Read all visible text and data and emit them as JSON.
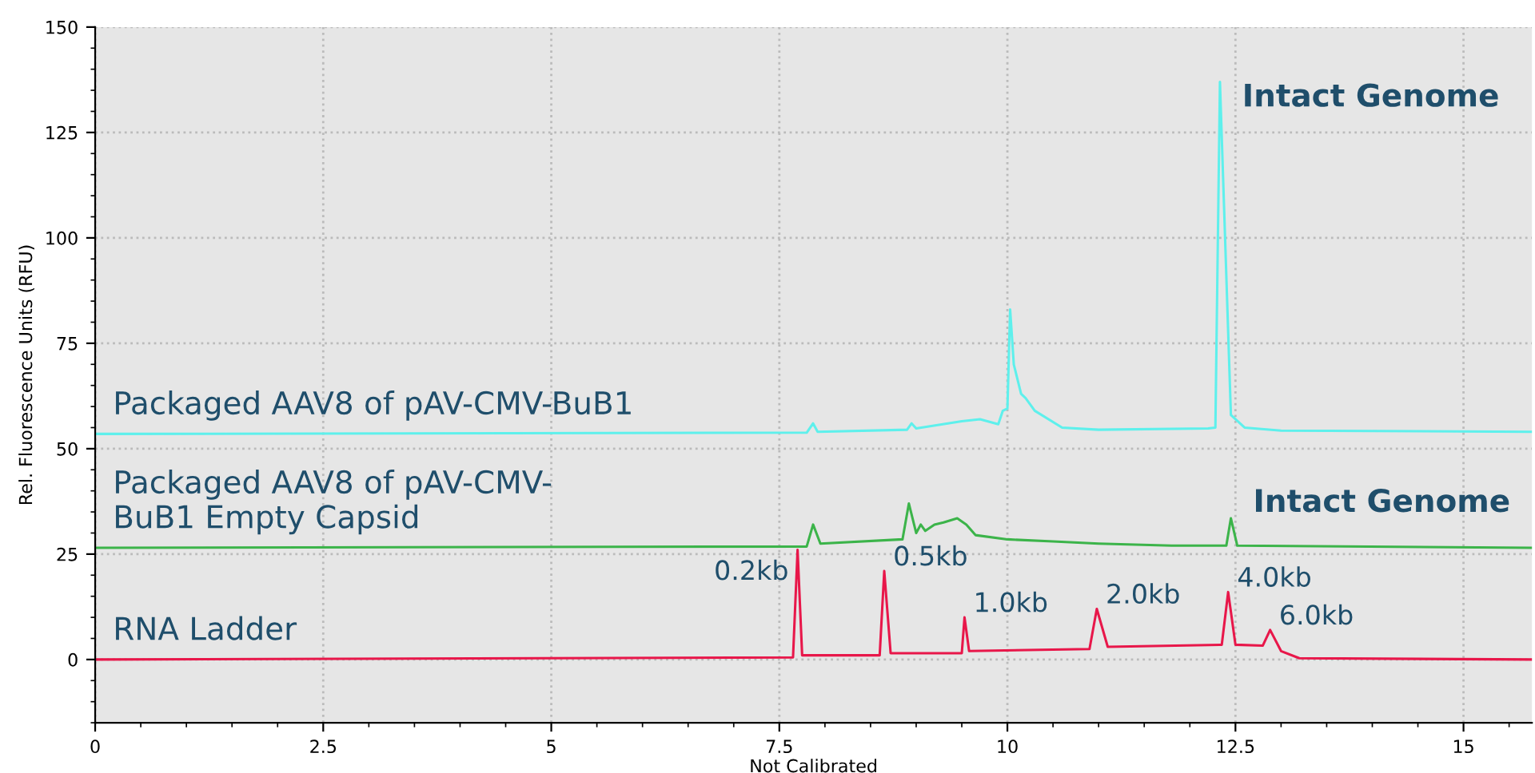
{
  "chart_data": {
    "type": "line",
    "xlabel": "Not Calibrated",
    "ylabel": "Rel. Fluorescence Units (RFU)",
    "xlim": [
      0,
      15.75
    ],
    "ylim": [
      -15,
      150
    ],
    "xticks": [
      0,
      2.5,
      5,
      7.5,
      10,
      12.5,
      15
    ],
    "yticks": [
      0,
      25,
      50,
      75,
      100,
      125,
      150
    ],
    "grid": true,
    "legend": false,
    "marker": "none",
    "line_style": "solid",
    "series": [
      {
        "name": "Packaged AAV8 of pAV-CMV-BuB1",
        "color": "#5ef0ec",
        "x": [
          0,
          7.8,
          7.87,
          7.92,
          8.9,
          8.95,
          9.0,
          9.5,
          9.7,
          9.9,
          9.95,
          10.0,
          10.03,
          10.07,
          10.15,
          10.2,
          10.3,
          10.6,
          11.0,
          12.2,
          12.28,
          12.33,
          12.45,
          12.6,
          13.0,
          15.75
        ],
        "values": [
          53.5,
          53.8,
          56,
          54,
          54.5,
          56,
          54.8,
          56.5,
          57,
          55.8,
          59,
          59.5,
          83,
          70,
          63,
          62,
          59,
          55,
          54.5,
          54.8,
          55,
          137,
          58,
          55,
          54.3,
          54
        ]
      },
      {
        "name": "Packaged AAV8 of pAV-CMV-\nBuB1 Empty Capsid",
        "color": "#3cb44a",
        "x": [
          0,
          7.8,
          7.87,
          7.95,
          8.85,
          8.92,
          9.0,
          9.05,
          9.1,
          9.2,
          9.3,
          9.45,
          9.55,
          9.65,
          10.0,
          10.5,
          11.0,
          11.8,
          12.4,
          12.45,
          12.52,
          15.75
        ],
        "values": [
          26.5,
          26.8,
          32,
          27.5,
          28.5,
          37,
          30,
          32,
          30.5,
          32,
          32.5,
          33.5,
          32,
          29.5,
          28.5,
          28,
          27.5,
          27,
          27,
          33.5,
          27,
          26.5
        ]
      },
      {
        "name": "RNA Ladder",
        "color": "#e8174a",
        "x": [
          0,
          7.65,
          7.7,
          7.75,
          8.6,
          8.65,
          8.72,
          9.5,
          9.53,
          9.58,
          10.9,
          10.98,
          11.1,
          12.35,
          12.42,
          12.5,
          12.8,
          12.88,
          13.0,
          13.2,
          15.75
        ],
        "values": [
          0,
          0.5,
          26,
          1,
          1,
          21,
          1.5,
          1.5,
          10,
          2,
          2.5,
          12,
          3,
          3.5,
          16,
          3.5,
          3.3,
          7,
          2,
          0.3,
          0
        ]
      }
    ],
    "annotations": [
      {
        "text": "Intact Genome",
        "x": 12.33,
        "y": 137
      },
      {
        "text": "Intact Genome",
        "x": 12.45,
        "y": 33.5
      },
      {
        "text": "0.2kb",
        "x": 7.7,
        "y": 26
      },
      {
        "text": "0.5kb",
        "x": 8.65,
        "y": 21
      },
      {
        "text": "1.0kb",
        "x": 9.53,
        "y": 10
      },
      {
        "text": "2.0kb",
        "x": 10.98,
        "y": 12
      },
      {
        "text": "4.0kb",
        "x": 12.42,
        "y": 16
      },
      {
        "text": "6.0kb",
        "x": 12.88,
        "y": 7
      }
    ]
  }
}
